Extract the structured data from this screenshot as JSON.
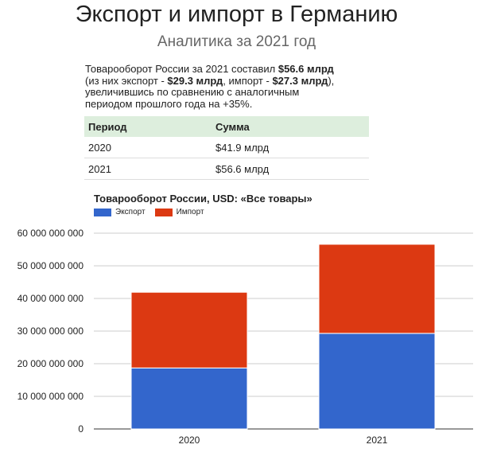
{
  "header": {
    "title": "Экспорт и импорт в Германию",
    "subtitle": "Аналитика за 2021 год"
  },
  "summary": {
    "prefix": "Товарооборот России за 2021 составил ",
    "total": "$56.6 млрд",
    "line2_prefix": "(из них экспорт - ",
    "export": "$29.3 млрд",
    "line2_mid": ", импорт - ",
    "import": "$27.3 млрд",
    "line2_suffix": "),",
    "line3": "увеличившись по сравнению с аналогичным",
    "line4": "периодом прошлого года на +35%."
  },
  "table": {
    "headers": [
      "Период",
      "Сумма"
    ],
    "rows": [
      [
        "2020",
        "$41.9 млрд"
      ],
      [
        "2021",
        "$56.6 млрд"
      ]
    ]
  },
  "colors": {
    "export": "#3366cc",
    "import": "#dc3912",
    "header_bg": "#ddeedd"
  },
  "chart_data": {
    "type": "bar",
    "stacked": true,
    "title": "Товарооборот России, USD: «Все товары»",
    "legend_position": "top-left",
    "categories": [
      "2020",
      "2021"
    ],
    "series": [
      {
        "name": "Экспорт",
        "values": [
          18700000000,
          29300000000
        ]
      },
      {
        "name": "Импорт",
        "values": [
          23200000000,
          27300000000
        ]
      }
    ],
    "ylim": [
      0,
      60000000000
    ],
    "yticks": [
      "0",
      "10 000 000 000",
      "20 000 000 000",
      "30 000 000 000",
      "40 000 000 000",
      "50 000 000 000",
      "60 000 000 000"
    ],
    "grid": true
  }
}
